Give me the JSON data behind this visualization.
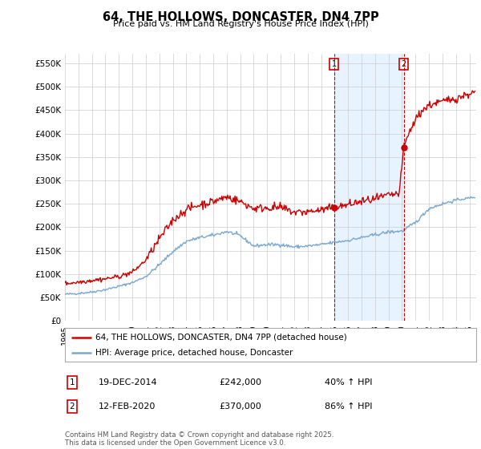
{
  "title": "64, THE HOLLOWS, DONCASTER, DN4 7PP",
  "subtitle": "Price paid vs. HM Land Registry's House Price Index (HPI)",
  "ylabel_ticks": [
    "£0",
    "£50K",
    "£100K",
    "£150K",
    "£200K",
    "£250K",
    "£300K",
    "£350K",
    "£400K",
    "£450K",
    "£500K",
    "£550K"
  ],
  "ytick_values": [
    0,
    50000,
    100000,
    150000,
    200000,
    250000,
    300000,
    350000,
    400000,
    450000,
    500000,
    550000
  ],
  "ylim": [
    0,
    570000
  ],
  "xlim_start": 1995.0,
  "xlim_end": 2025.5,
  "xticks": [
    1995,
    1996,
    1997,
    1998,
    1999,
    2000,
    2001,
    2002,
    2003,
    2004,
    2005,
    2006,
    2007,
    2008,
    2009,
    2010,
    2011,
    2012,
    2013,
    2014,
    2015,
    2016,
    2017,
    2018,
    2019,
    2020,
    2021,
    2022,
    2023,
    2024,
    2025
  ],
  "red_line_color": "#CC0000",
  "blue_line_color": "#7BA7D0",
  "shade_color": "#DDEEFF",
  "marker1_date": 2014.96,
  "marker2_date": 2020.12,
  "marker1_value": 242000,
  "marker2_value": 370000,
  "marker1_label": "1",
  "marker2_label": "2",
  "legend_red_label": "64, THE HOLLOWS, DONCASTER, DN4 7PP (detached house)",
  "legend_blue_label": "HPI: Average price, detached house, Doncaster",
  "annotation1_num": "1",
  "annotation1_date": "19-DEC-2014",
  "annotation1_price": "£242,000",
  "annotation1_hpi": "40% ↑ HPI",
  "annotation2_num": "2",
  "annotation2_date": "12-FEB-2020",
  "annotation2_price": "£370,000",
  "annotation2_hpi": "86% ↑ HPI",
  "footer": "Contains HM Land Registry data © Crown copyright and database right 2025.\nThis data is licensed under the Open Government Licence v3.0.",
  "background_color": "#FFFFFF",
  "grid_color": "#CCCCCC"
}
